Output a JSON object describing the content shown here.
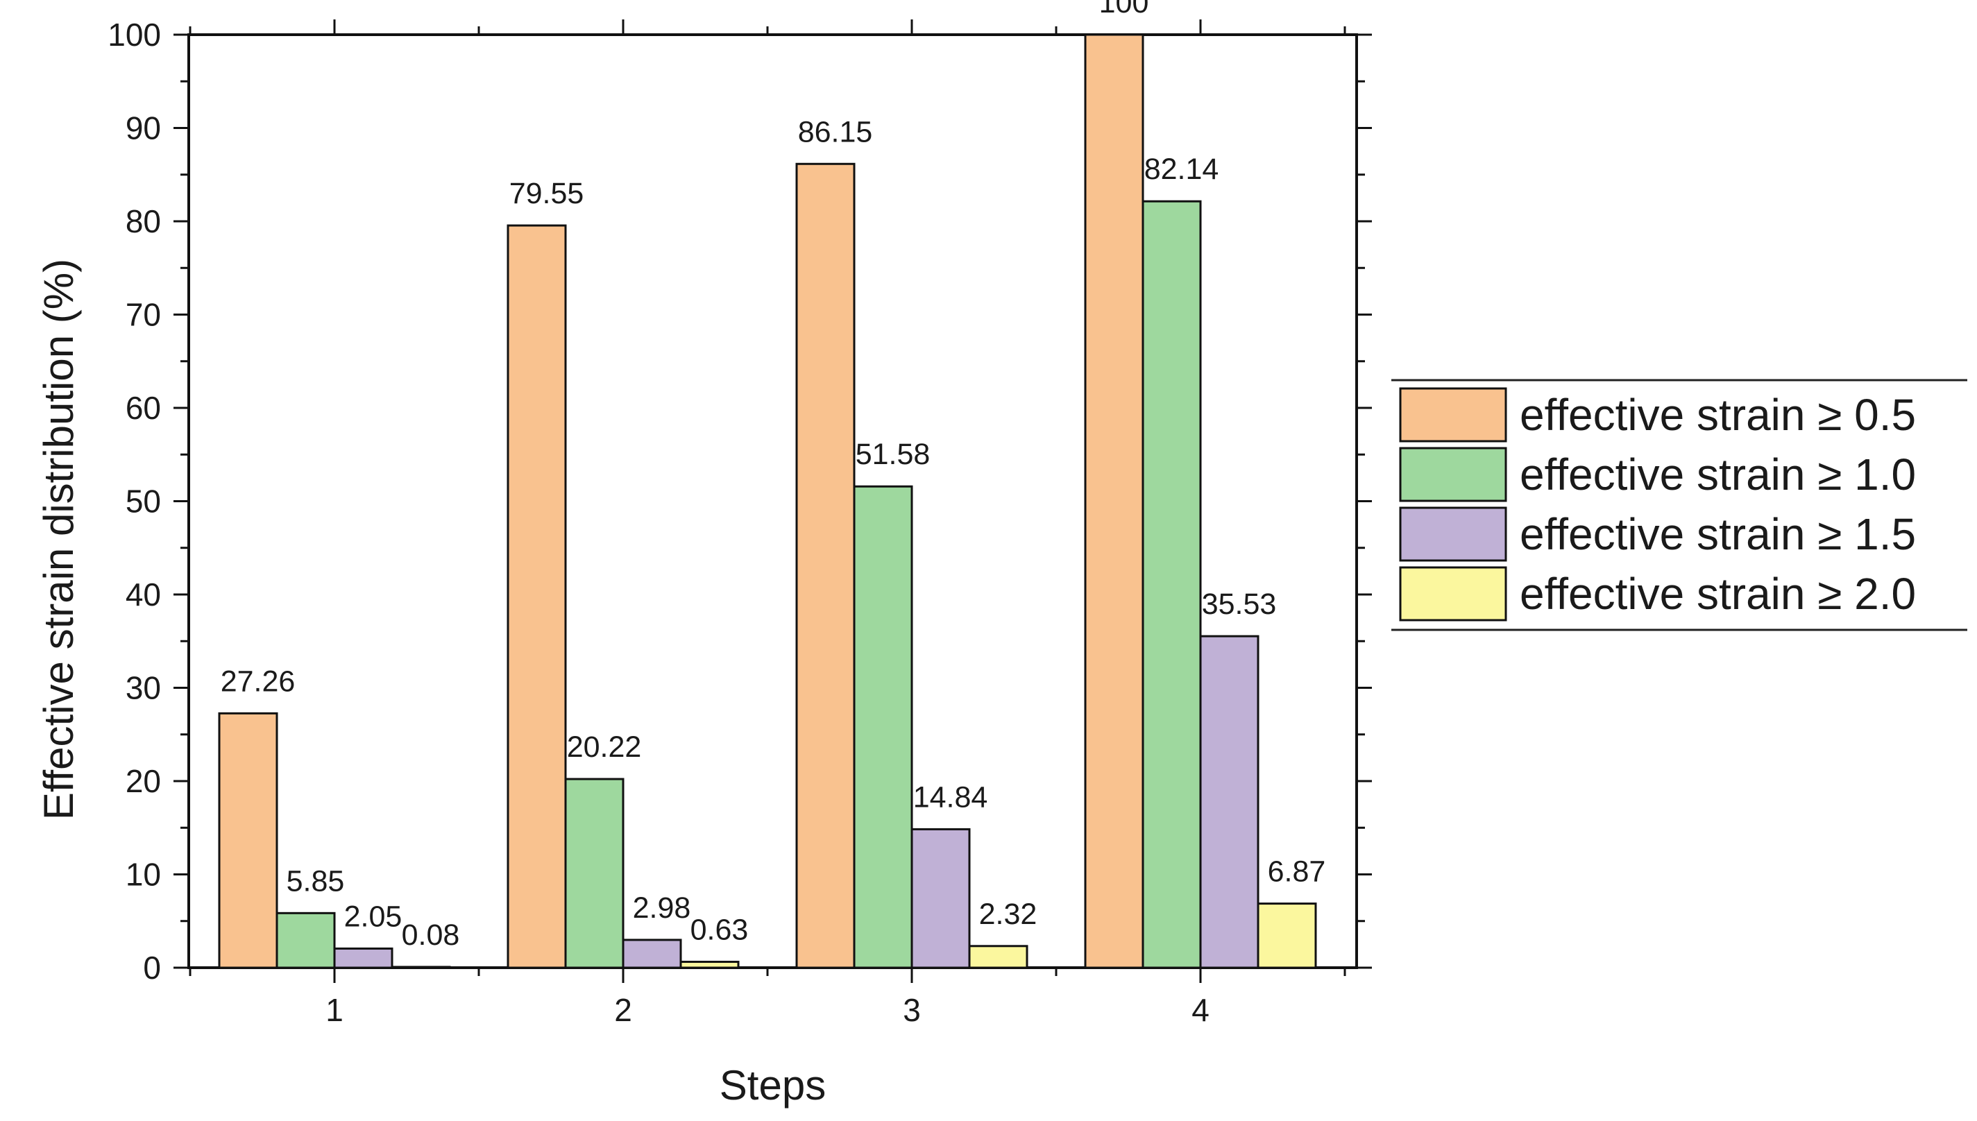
{
  "chart_data": {
    "type": "bar",
    "title": "",
    "xlabel": "Steps",
    "ylabel": "Effective strain distribution (%)",
    "ylim": [
      0,
      100
    ],
    "yticks": [
      0,
      10,
      20,
      30,
      40,
      50,
      60,
      70,
      80,
      90,
      100
    ],
    "categories": [
      "1",
      "2",
      "3",
      "4"
    ],
    "grid": false,
    "legend_position": "right",
    "series": [
      {
        "name": "effective strain ≥ 0.5",
        "color": "#f9c28f",
        "values": [
          27.26,
          79.55,
          86.15,
          100
        ],
        "labels": [
          "27.26",
          "79.55",
          "86.15",
          "100"
        ]
      },
      {
        "name": "effective strain ≥ 1.0",
        "color": "#9ed89e",
        "values": [
          5.85,
          20.22,
          51.58,
          82.14
        ],
        "labels": [
          "5.85",
          "20.22",
          "51.58",
          "82.14"
        ]
      },
      {
        "name": "effective strain ≥ 1.5",
        "color": "#c0b1d6",
        "values": [
          2.05,
          2.98,
          14.84,
          35.53
        ],
        "labels": [
          "2.05",
          "2.98",
          "14.84",
          "35.53"
        ]
      },
      {
        "name": "effective strain ≥ 2.0",
        "color": "#fbf79e",
        "values": [
          0.08,
          0.63,
          2.32,
          6.87
        ],
        "labels": [
          "0.08",
          "0.63",
          "2.32",
          "6.87"
        ]
      }
    ]
  }
}
